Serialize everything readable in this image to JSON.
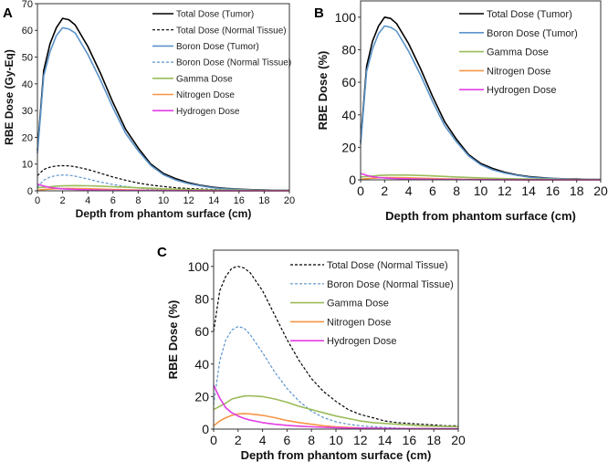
{
  "chart_data": [
    {
      "type": "line",
      "panel": "A",
      "xlabel": "Depth from phantom surface (cm)",
      "ylabel": "RBE Dose (Gy-Eq)",
      "xlim": [
        0,
        20
      ],
      "ylim": [
        0,
        70
      ],
      "xticks": [
        0,
        2,
        4,
        6,
        8,
        10,
        12,
        14,
        16,
        18,
        20
      ],
      "yticks": [
        0,
        10,
        20,
        30,
        40,
        50,
        60,
        70
      ],
      "legend": "top-right",
      "x": [
        0,
        0.5,
        1,
        1.5,
        2,
        2.5,
        3,
        4,
        5,
        6,
        7,
        8,
        9,
        10,
        11,
        12,
        13,
        14,
        15,
        16,
        17,
        18,
        19,
        20
      ],
      "series": [
        {
          "name": "Total Dose (Tumor)",
          "color": "#000000",
          "dashed": false,
          "values": [
            15,
            45,
            55,
            61,
            64.5,
            64,
            62,
            54,
            44,
            33,
            23,
            16,
            10,
            6.5,
            4.5,
            3,
            2,
            1.3,
            0.9,
            0.6,
            0.4,
            0.3,
            0.2,
            0.15
          ]
        },
        {
          "name": "Total Dose (Normal Tissue)",
          "color": "#000000",
          "dashed": true,
          "values": [
            5.64,
            7.99,
            8.84,
            9.31,
            9.4,
            9.31,
            9.02,
            7.99,
            6.58,
            5.17,
            3.95,
            2.91,
            2.16,
            1.6,
            1.13,
            0.85,
            0.66,
            0.47,
            0.38,
            0.33,
            0.28,
            0.24,
            0.19,
            0.19
          ]
        },
        {
          "name": "Boron Dose (Tumor)",
          "color": "#5b93c9",
          "dashed": false,
          "values": [
            14,
            43,
            52,
            58,
            61,
            60.5,
            59,
            51,
            41.5,
            31,
            21.5,
            15,
            9.5,
            6,
            4,
            2.7,
            1.8,
            1.1,
            0.7,
            0.5,
            0.3,
            0.2,
            0.15,
            0.1
          ]
        },
        {
          "name": "Boron Dose (Normal Tissue)",
          "color": "#5b93c9",
          "dashed": true,
          "values": [
            1.41,
            3.95,
            5.17,
            5.73,
            5.92,
            5.83,
            5.45,
            4.42,
            3.29,
            2.35,
            1.6,
            1.03,
            0.66,
            0.42,
            0.28,
            0.19,
            0.14,
            0.09,
            0.07,
            0.05,
            0.04,
            0.03,
            0.03,
            0.02
          ]
        },
        {
          "name": "Gamma Dose",
          "color": "#9bbb59",
          "dashed": false,
          "values": [
            1.13,
            1.32,
            1.5,
            1.74,
            1.83,
            1.91,
            1.93,
            1.88,
            1.74,
            1.55,
            1.32,
            1.13,
            0.94,
            0.75,
            0.61,
            0.47,
            0.38,
            0.33,
            0.28,
            0.24,
            0.19,
            0.17,
            0.15,
            0.14
          ]
        },
        {
          "name": "Nitrogen Dose",
          "color": "#f79646",
          "dashed": false,
          "values": [
            0.19,
            0.47,
            0.66,
            0.8,
            0.87,
            0.89,
            0.87,
            0.8,
            0.66,
            0.5,
            0.38,
            0.28,
            0.19,
            0.13,
            0.09,
            0.07,
            0.05,
            0.04,
            0.03,
            0.02,
            0.02,
            0.01,
            0.01,
            0.01
          ]
        },
        {
          "name": "Hydrogen Dose",
          "color": "#e23ee2",
          "dashed": false,
          "values": [
            2.54,
            1.79,
            1.22,
            0.94,
            0.75,
            0.61,
            0.52,
            0.38,
            0.28,
            0.22,
            0.17,
            0.13,
            0.1,
            0.08,
            0.07,
            0.06,
            0.05,
            0.04,
            0.03,
            0.03,
            0.02,
            0.02,
            0.02,
            0.02
          ]
        }
      ]
    },
    {
      "type": "line",
      "panel": "B",
      "xlabel": "Depth from phantom surface (cm)",
      "ylabel": "RBE Dose (%)",
      "xlim": [
        0,
        20
      ],
      "ylim": [
        0,
        110
      ],
      "xticks": [
        0,
        2,
        4,
        6,
        8,
        10,
        12,
        14,
        16,
        18,
        20
      ],
      "yticks": [
        0,
        20,
        40,
        60,
        80,
        100
      ],
      "legend": "top-right",
      "x": [
        0,
        0.5,
        1,
        1.5,
        2,
        2.5,
        3,
        4,
        5,
        6,
        7,
        8,
        9,
        10,
        11,
        12,
        13,
        14,
        15,
        16,
        17,
        18,
        19,
        20
      ],
      "series": [
        {
          "name": "Total Dose (Tumor)",
          "color": "#000000",
          "dashed": false,
          "values": [
            23.3,
            69.8,
            85.3,
            94.6,
            100,
            99.2,
            96.1,
            83.7,
            68.2,
            51.2,
            35.7,
            24.8,
            15.5,
            10.1,
            7,
            4.7,
            3.1,
            2,
            1.4,
            0.9,
            0.6,
            0.5,
            0.3,
            0.2
          ]
        },
        {
          "name": "Boron Dose (Tumor)",
          "color": "#5b93c9",
          "dashed": false,
          "values": [
            21.7,
            66.7,
            80.6,
            89.9,
            94.6,
            93.8,
            91.5,
            79.1,
            64.3,
            48.1,
            33.3,
            23.3,
            14.7,
            9.3,
            6.2,
            4.2,
            2.8,
            1.7,
            1.1,
            0.8,
            0.5,
            0.3,
            0.2,
            0.2
          ]
        },
        {
          "name": "Gamma Dose",
          "color": "#9bbb59",
          "dashed": false,
          "values": [
            1.75,
            2.05,
            2.33,
            2.7,
            2.84,
            2.96,
            2.99,
            2.91,
            2.7,
            2.4,
            2.05,
            1.75,
            1.46,
            1.16,
            0.95,
            0.73,
            0.59,
            0.51,
            0.43,
            0.37,
            0.29,
            0.26,
            0.23,
            0.22
          ]
        },
        {
          "name": "Nitrogen Dose",
          "color": "#f79646",
          "dashed": false,
          "values": [
            0.29,
            0.73,
            1.02,
            1.24,
            1.35,
            1.38,
            1.35,
            1.24,
            1.02,
            0.78,
            0.59,
            0.43,
            0.29,
            0.2,
            0.14,
            0.11,
            0.08,
            0.06,
            0.05,
            0.03,
            0.03,
            0.02,
            0.02,
            0.02
          ]
        },
        {
          "name": "Hydrogen Dose",
          "color": "#e23ee2",
          "dashed": false,
          "values": [
            3.94,
            2.78,
            1.89,
            1.46,
            1.16,
            0.95,
            0.81,
            0.59,
            0.43,
            0.34,
            0.26,
            0.2,
            0.16,
            0.12,
            0.11,
            0.09,
            0.08,
            0.06,
            0.05,
            0.05,
            0.03,
            0.03,
            0.03,
            0.03
          ]
        }
      ]
    },
    {
      "type": "line",
      "panel": "C",
      "xlabel": "Depth from phantom surface (cm)",
      "ylabel": "RBE Dose (%)",
      "xlim": [
        0,
        20
      ],
      "ylim": [
        0,
        110
      ],
      "xticks": [
        0,
        2,
        4,
        6,
        8,
        10,
        12,
        14,
        16,
        18,
        20
      ],
      "yticks": [
        0,
        20,
        40,
        60,
        80,
        100
      ],
      "legend": "top-right",
      "x": [
        0,
        0.5,
        1,
        1.5,
        2,
        2.5,
        3,
        4,
        5,
        6,
        7,
        8,
        9,
        10,
        11,
        12,
        13,
        14,
        15,
        16,
        17,
        18,
        19,
        20
      ],
      "series": [
        {
          "name": "Total Dose (Normal Tissue)",
          "color": "#000000",
          "dashed": true,
          "values": [
            60,
            85,
            94,
            99,
            100,
            99,
            96,
            85,
            70,
            55,
            42,
            31,
            23,
            17,
            12,
            9,
            7,
            5,
            4,
            3.5,
            3,
            2.5,
            2,
            2
          ]
        },
        {
          "name": "Boron Dose (Normal Tissue)",
          "color": "#5b93c9",
          "dashed": true,
          "values": [
            15,
            42,
            55,
            61,
            63,
            62,
            58,
            47,
            35,
            25,
            17,
            11,
            7,
            4.5,
            3,
            2,
            1.5,
            1,
            0.7,
            0.5,
            0.4,
            0.3,
            0.3,
            0.2
          ]
        },
        {
          "name": "Gamma Dose",
          "color": "#9bbb59",
          "dashed": false,
          "values": [
            12,
            14,
            16,
            18.5,
            19.5,
            20.3,
            20.5,
            20,
            18.5,
            16.5,
            14,
            12,
            10,
            8,
            6.5,
            5,
            4,
            3.5,
            3,
            2.5,
            2,
            1.8,
            1.6,
            1.5
          ]
        },
        {
          "name": "Nitrogen Dose",
          "color": "#f79646",
          "dashed": false,
          "values": [
            2,
            5,
            7,
            8.5,
            9.3,
            9.5,
            9.3,
            8.5,
            7,
            5.3,
            4,
            3,
            2,
            1.4,
            1,
            0.7,
            0.5,
            0.4,
            0.3,
            0.2,
            0.2,
            0.1,
            0.1,
            0.1
          ]
        },
        {
          "name": "Hydrogen Dose",
          "color": "#e23ee2",
          "dashed": false,
          "values": [
            27,
            19,
            13,
            10,
            8,
            6.5,
            5.5,
            4,
            3,
            2.3,
            1.8,
            1.4,
            1.1,
            0.9,
            0.7,
            0.6,
            0.5,
            0.4,
            0.35,
            0.3,
            0.25,
            0.2,
            0.2,
            0.2
          ]
        }
      ]
    }
  ]
}
